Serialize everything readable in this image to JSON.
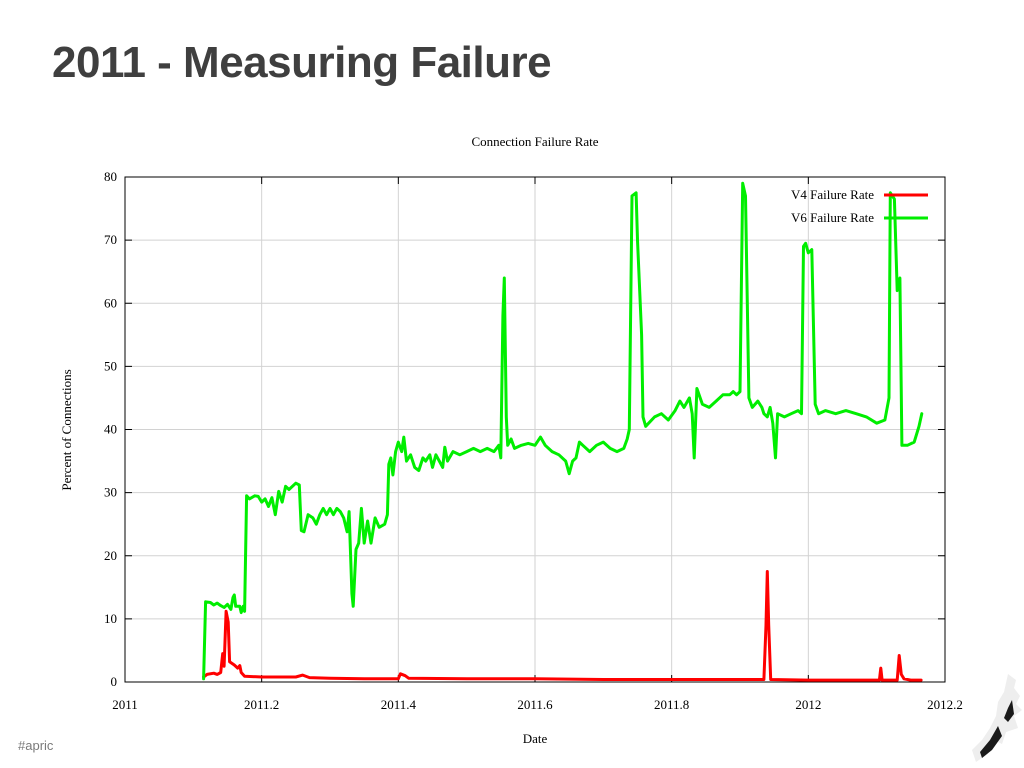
{
  "slide": {
    "title": "2011 - Measuring Failure",
    "footer": "#apric"
  },
  "chart_data": {
    "type": "line",
    "title": "Connection Failure Rate",
    "xlabel": "Date",
    "ylabel": "Percent of Connections",
    "xlim": [
      2011,
      2012.2
    ],
    "ylim": [
      0,
      80
    ],
    "xticks": [
      "2011",
      "2011.2",
      "2011.4",
      "2011.6",
      "2011.8",
      "2012",
      "2012.2"
    ],
    "yticks": [
      "0",
      "10",
      "20",
      "30",
      "40",
      "50",
      "60",
      "70",
      "80"
    ],
    "grid": true,
    "legend_position": "top-right",
    "series": [
      {
        "name": "V4 Failure Rate",
        "color": "#ff0000",
        "points": [
          [
            2011.115,
            0.8
          ],
          [
            2011.12,
            1.2
          ],
          [
            2011.13,
            1.4
          ],
          [
            2011.135,
            1.2
          ],
          [
            2011.14,
            1.5
          ],
          [
            2011.143,
            4.5
          ],
          [
            2011.145,
            2.5
          ],
          [
            2011.148,
            11.2
          ],
          [
            2011.151,
            9.5
          ],
          [
            2011.153,
            3.2
          ],
          [
            2011.16,
            2.7
          ],
          [
            2011.165,
            2.2
          ],
          [
            2011.168,
            2.6
          ],
          [
            2011.17,
            1.5
          ],
          [
            2011.175,
            0.9
          ],
          [
            2011.2,
            0.8
          ],
          [
            2011.25,
            0.8
          ],
          [
            2011.26,
            1.1
          ],
          [
            2011.27,
            0.7
          ],
          [
            2011.3,
            0.6
          ],
          [
            2011.35,
            0.5
          ],
          [
            2011.4,
            0.5
          ],
          [
            2011.403,
            1.3
          ],
          [
            2011.41,
            1.0
          ],
          [
            2011.415,
            0.6
          ],
          [
            2011.5,
            0.5
          ],
          [
            2011.6,
            0.5
          ],
          [
            2011.7,
            0.4
          ],
          [
            2011.8,
            0.4
          ],
          [
            2011.9,
            0.4
          ],
          [
            2011.935,
            0.4
          ],
          [
            2011.938,
            9.0
          ],
          [
            2011.94,
            17.5
          ],
          [
            2011.942,
            9.0
          ],
          [
            2011.945,
            0.4
          ],
          [
            2012.0,
            0.3
          ],
          [
            2012.05,
            0.3
          ],
          [
            2012.104,
            0.3
          ],
          [
            2012.106,
            2.2
          ],
          [
            2012.108,
            0.3
          ],
          [
            2012.13,
            0.3
          ],
          [
            2012.133,
            4.2
          ],
          [
            2012.136,
            1.2
          ],
          [
            2012.14,
            0.5
          ],
          [
            2012.15,
            0.3
          ],
          [
            2012.165,
            0.3
          ]
        ]
      },
      {
        "name": "V6 Failure Rate",
        "color": "#00ee00",
        "points": [
          [
            2011.115,
            0.5
          ],
          [
            2011.118,
            12.7
          ],
          [
            2011.125,
            12.6
          ],
          [
            2011.13,
            12.2
          ],
          [
            2011.135,
            12.5
          ],
          [
            2011.14,
            12.1
          ],
          [
            2011.145,
            11.8
          ],
          [
            2011.15,
            12.3
          ],
          [
            2011.155,
            11.5
          ],
          [
            2011.158,
            13.4
          ],
          [
            2011.16,
            13.8
          ],
          [
            2011.162,
            12.0
          ],
          [
            2011.168,
            12.0
          ],
          [
            2011.17,
            11.0
          ],
          [
            2011.173,
            12.0
          ],
          [
            2011.175,
            11.2
          ],
          [
            2011.178,
            29.5
          ],
          [
            2011.182,
            29.0
          ],
          [
            2011.19,
            29.5
          ],
          [
            2011.195,
            29.4
          ],
          [
            2011.2,
            28.5
          ],
          [
            2011.205,
            29.0
          ],
          [
            2011.21,
            27.8
          ],
          [
            2011.215,
            29.2
          ],
          [
            2011.22,
            26.5
          ],
          [
            2011.225,
            30.2
          ],
          [
            2011.23,
            28.5
          ],
          [
            2011.235,
            31.0
          ],
          [
            2011.24,
            30.5
          ],
          [
            2011.25,
            31.5
          ],
          [
            2011.255,
            31.2
          ],
          [
            2011.258,
            24.0
          ],
          [
            2011.262,
            23.8
          ],
          [
            2011.268,
            26.5
          ],
          [
            2011.275,
            26.0
          ],
          [
            2011.28,
            25.0
          ],
          [
            2011.285,
            26.5
          ],
          [
            2011.29,
            27.5
          ],
          [
            2011.295,
            26.5
          ],
          [
            2011.3,
            27.5
          ],
          [
            2011.305,
            26.5
          ],
          [
            2011.31,
            27.5
          ],
          [
            2011.315,
            27.0
          ],
          [
            2011.32,
            26.0
          ],
          [
            2011.325,
            23.8
          ],
          [
            2011.328,
            27.0
          ],
          [
            2011.332,
            14.0
          ],
          [
            2011.334,
            12.0
          ],
          [
            2011.338,
            21.0
          ],
          [
            2011.342,
            22.0
          ],
          [
            2011.346,
            27.5
          ],
          [
            2011.35,
            22.0
          ],
          [
            2011.355,
            25.5
          ],
          [
            2011.36,
            22.0
          ],
          [
            2011.366,
            26.0
          ],
          [
            2011.372,
            24.5
          ],
          [
            2011.38,
            25.0
          ],
          [
            2011.384,
            26.5
          ],
          [
            2011.386,
            34.5
          ],
          [
            2011.389,
            35.5
          ],
          [
            2011.392,
            32.8
          ],
          [
            2011.396,
            36.5
          ],
          [
            2011.4,
            38.0
          ],
          [
            2011.405,
            36.5
          ],
          [
            2011.408,
            38.8
          ],
          [
            2011.412,
            35.0
          ],
          [
            2011.418,
            36.0
          ],
          [
            2011.424,
            34.0
          ],
          [
            2011.43,
            33.5
          ],
          [
            2011.436,
            35.5
          ],
          [
            2011.44,
            35.0
          ],
          [
            2011.446,
            36.0
          ],
          [
            2011.45,
            34.0
          ],
          [
            2011.455,
            36.0
          ],
          [
            2011.46,
            35.0
          ],
          [
            2011.465,
            34.0
          ],
          [
            2011.468,
            37.2
          ],
          [
            2011.472,
            35.0
          ],
          [
            2011.48,
            36.5
          ],
          [
            2011.49,
            36.0
          ],
          [
            2011.5,
            36.5
          ],
          [
            2011.51,
            37.0
          ],
          [
            2011.52,
            36.5
          ],
          [
            2011.53,
            37.0
          ],
          [
            2011.54,
            36.5
          ],
          [
            2011.547,
            37.5
          ],
          [
            2011.55,
            35.5
          ],
          [
            2011.553,
            58.0
          ],
          [
            2011.555,
            64.0
          ],
          [
            2011.558,
            42.0
          ],
          [
            2011.56,
            37.5
          ],
          [
            2011.565,
            38.5
          ],
          [
            2011.57,
            37.0
          ],
          [
            2011.58,
            37.5
          ],
          [
            2011.59,
            37.8
          ],
          [
            2011.6,
            37.5
          ],
          [
            2011.608,
            38.8
          ],
          [
            2011.615,
            37.5
          ],
          [
            2011.625,
            36.5
          ],
          [
            2011.635,
            36.0
          ],
          [
            2011.645,
            35.0
          ],
          [
            2011.65,
            33.0
          ],
          [
            2011.655,
            35.0
          ],
          [
            2011.66,
            35.5
          ],
          [
            2011.665,
            38.0
          ],
          [
            2011.67,
            37.5
          ],
          [
            2011.68,
            36.5
          ],
          [
            2011.69,
            37.5
          ],
          [
            2011.7,
            38.0
          ],
          [
            2011.71,
            37.0
          ],
          [
            2011.72,
            36.5
          ],
          [
            2011.73,
            37.0
          ],
          [
            2011.735,
            38.5
          ],
          [
            2011.738,
            40.0
          ],
          [
            2011.742,
            77.0
          ],
          [
            2011.748,
            77.5
          ],
          [
            2011.75,
            70.0
          ],
          [
            2011.756,
            55.0
          ],
          [
            2011.758,
            42.0
          ],
          [
            2011.762,
            40.5
          ],
          [
            2011.775,
            42.0
          ],
          [
            2011.785,
            42.5
          ],
          [
            2011.795,
            41.5
          ],
          [
            2011.805,
            43.0
          ],
          [
            2011.812,
            44.5
          ],
          [
            2011.818,
            43.5
          ],
          [
            2011.826,
            45.0
          ],
          [
            2011.83,
            42.5
          ],
          [
            2011.833,
            35.5
          ],
          [
            2011.837,
            46.5
          ],
          [
            2011.845,
            44.0
          ],
          [
            2011.855,
            43.5
          ],
          [
            2011.865,
            44.5
          ],
          [
            2011.875,
            45.5
          ],
          [
            2011.885,
            45.5
          ],
          [
            2011.89,
            46.0
          ],
          [
            2011.895,
            45.5
          ],
          [
            2011.9,
            46.0
          ],
          [
            2011.904,
            79.0
          ],
          [
            2011.908,
            77.0
          ],
          [
            2011.913,
            45.0
          ],
          [
            2011.918,
            43.5
          ],
          [
            2011.926,
            44.5
          ],
          [
            2011.932,
            43.5
          ],
          [
            2011.935,
            42.5
          ],
          [
            2011.94,
            42.0
          ],
          [
            2011.944,
            43.5
          ],
          [
            2011.948,
            41.0
          ],
          [
            2011.952,
            35.5
          ],
          [
            2011.955,
            42.5
          ],
          [
            2011.965,
            42.0
          ],
          [
            2011.975,
            42.5
          ],
          [
            2011.985,
            43.0
          ],
          [
            2011.99,
            42.5
          ],
          [
            2011.993,
            69.0
          ],
          [
            2011.996,
            69.5
          ],
          [
            2012.0,
            68.0
          ],
          [
            2012.005,
            68.5
          ],
          [
            2012.01,
            44.0
          ],
          [
            2012.015,
            42.5
          ],
          [
            2012.025,
            43.0
          ],
          [
            2012.04,
            42.5
          ],
          [
            2012.055,
            43.0
          ],
          [
            2012.07,
            42.5
          ],
          [
            2012.085,
            42.0
          ],
          [
            2012.1,
            41.0
          ],
          [
            2012.112,
            41.5
          ],
          [
            2012.118,
            45.0
          ],
          [
            2012.12,
            77.5
          ],
          [
            2012.126,
            76.5
          ],
          [
            2012.13,
            62.0
          ],
          [
            2012.134,
            64.0
          ],
          [
            2012.137,
            37.5
          ],
          [
            2012.145,
            37.5
          ],
          [
            2012.155,
            38.0
          ],
          [
            2012.162,
            40.5
          ],
          [
            2012.166,
            42.5
          ]
        ]
      }
    ]
  }
}
